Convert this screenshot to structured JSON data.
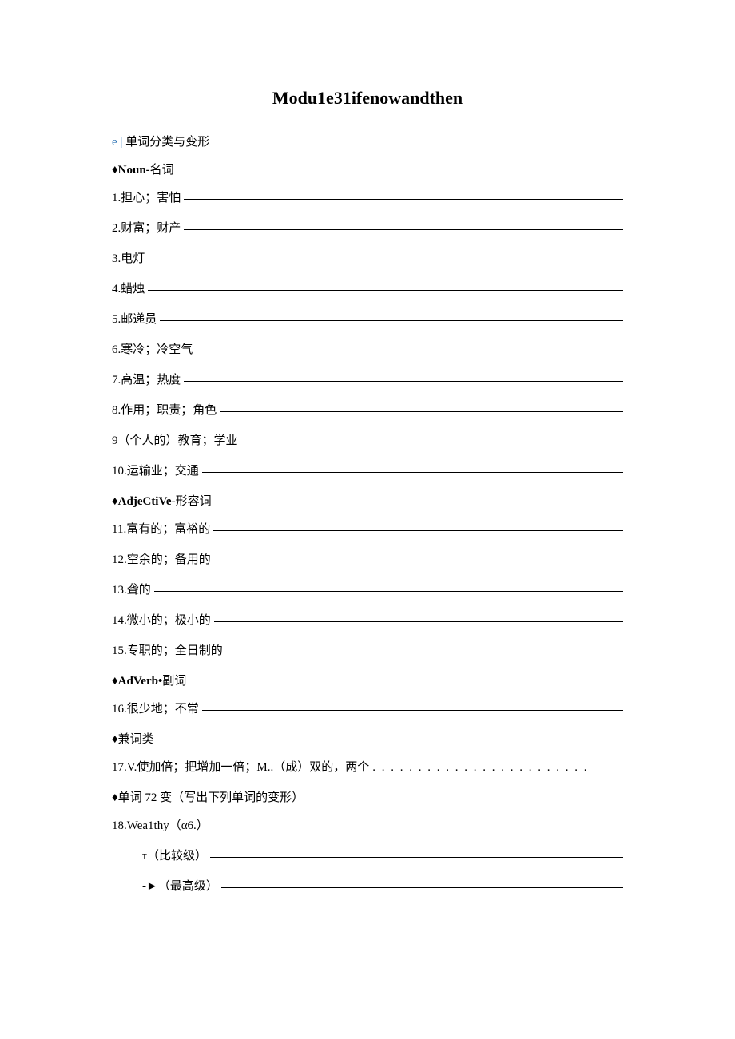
{
  "title": "Modu1e31ifenowandthen",
  "section1": {
    "bullet": "e |",
    "label": " 单词分类与变形"
  },
  "categories": {
    "noun": {
      "diamond": "♦",
      "bold": "Noun-",
      "text": "名词"
    },
    "adjective": {
      "diamond": "♦",
      "bold": "AdjeCtiVe-",
      "text": "形容词"
    },
    "adverb": {
      "diamond": "♦",
      "bold": "AdVerb•",
      "text": "副词"
    },
    "multi": {
      "diamond": "♦",
      "text": "兼词类"
    },
    "transform": {
      "diamond": "♦",
      "text": "单词 72 变（写出下列单词的变形）"
    }
  },
  "items": {
    "i1": {
      "num": "1",
      "text": " .担心；害怕 "
    },
    "i2": {
      "num": "2",
      "text": " .财富；财产"
    },
    "i3": {
      "num": "3",
      "text": " .电灯 "
    },
    "i4": {
      "num": "4",
      "text": " .蜡烛"
    },
    "i5": {
      "num": "5",
      "text": " .邮递员 "
    },
    "i6": {
      "num": "6",
      "text": " .寒冷；冷空气"
    },
    "i7": {
      "num": "7",
      "text": " .高温；热度 "
    },
    "i8": {
      "num": "8",
      "text": " .作用；职责；角色 "
    },
    "i9": {
      "num": "9",
      "text": "（个人的）教育；学业 "
    },
    "i10": {
      "num": "10",
      "text": " .运输业；交通 "
    },
    "i11": {
      "num": "11",
      "text": " .富有的；富裕的 "
    },
    "i12": {
      "num": "12",
      "text": " .空余的；备用的 "
    },
    "i13": {
      "num": "13",
      "text": " .聋的"
    },
    "i14": {
      "num": "14",
      "text": " .微小的；极小的 "
    },
    "i15": {
      "num": "15",
      "text": " .专职的；全日制的 "
    },
    "i16": {
      "num": "16.",
      "text": "很少地；不常 "
    },
    "i17": {
      "num": "17.",
      "text": " V.使加倍；把增加一倍；M..（成）双的，两个",
      "dots": " . . . . . . . . . . . . . . . . . . . . . . . ."
    },
    "i18": {
      "num": "18.",
      "text": " Wea1thy（α6.）"
    },
    "i18a": {
      "text": "τ（比较级）"
    },
    "i18b": {
      "text": "-►（最高级）"
    }
  }
}
